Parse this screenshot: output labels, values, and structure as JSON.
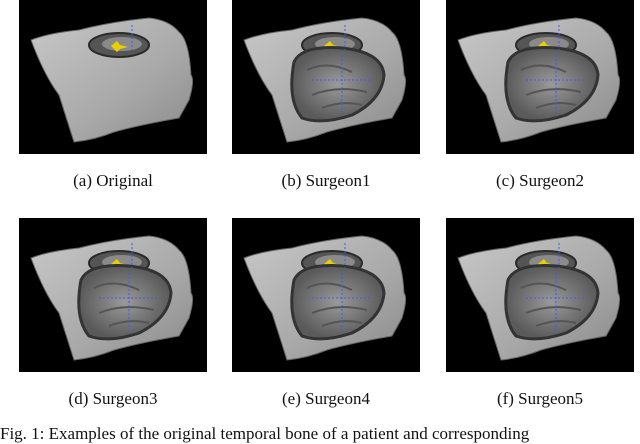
{
  "figure": {
    "panels": [
      {
        "label": "(a)  Original",
        "cavity": false
      },
      {
        "label": "(b)  Surgeon1",
        "cavity": true
      },
      {
        "label": "(c)  Surgeon2",
        "cavity": true
      },
      {
        "label": "(d)  Surgeon3",
        "cavity": true
      },
      {
        "label": "(e)  Surgeon4",
        "cavity": true
      },
      {
        "label": "(f)  Surgeon5",
        "cavity": true
      }
    ],
    "caption": "Fig. 1: Examples of the original temporal bone of a patient and corresponding"
  },
  "colors": {
    "background": "#000000",
    "bone": "#b8b8b8",
    "marker": "#e8d000",
    "axis": "#4455ff"
  }
}
